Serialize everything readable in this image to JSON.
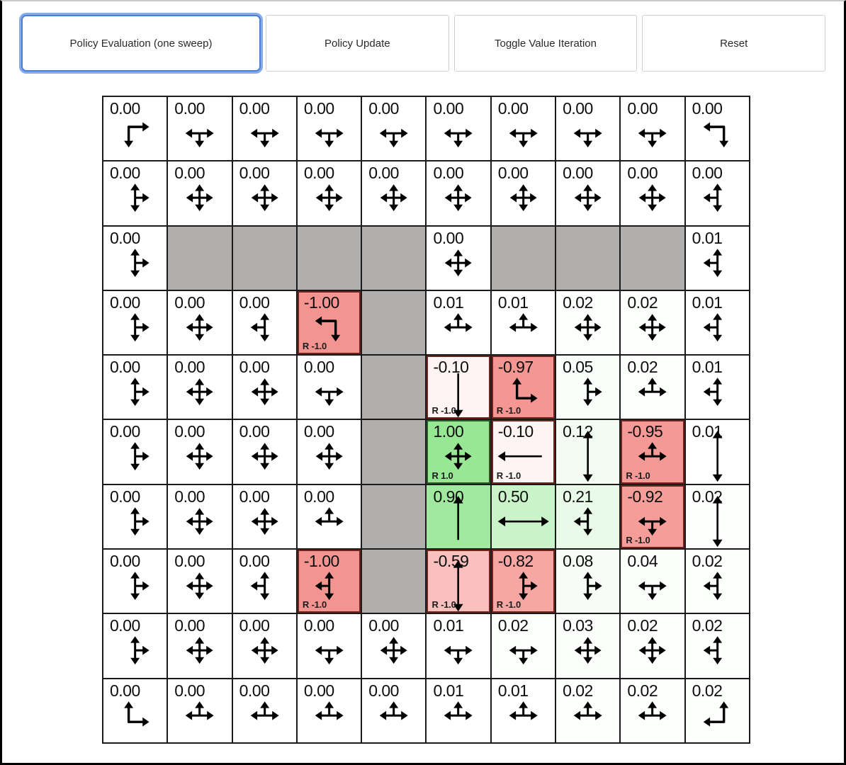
{
  "toolbar": {
    "buttons": [
      {
        "label": "Policy Evaluation (one sweep)",
        "focused": true
      },
      {
        "label": "Policy Update",
        "focused": false
      },
      {
        "label": "Toggle Value Iteration",
        "focused": false
      },
      {
        "label": "Reset",
        "focused": false
      }
    ]
  },
  "colors": {
    "positive_base": "#97e794",
    "negative_base": "#f49490",
    "wall": "#b0afad",
    "grid_line": "#1a1a1a",
    "positive_reward_border": "#235c23",
    "negative_reward_border": "#6e231c",
    "focus_border": "#4a7fd9",
    "focus_ring": "#87aaec"
  },
  "grid": {
    "rows": 10,
    "cols": 10,
    "cells": [
      [
        {
          "v": "0.00",
          "a": "elbow:r,d"
        },
        {
          "v": "0.00",
          "a": "star:l,r,d"
        },
        {
          "v": "0.00",
          "a": "star:l,r,d"
        },
        {
          "v": "0.00",
          "a": "star:l,r,d"
        },
        {
          "v": "0.00",
          "a": "star:l,r,d"
        },
        {
          "v": "0.00",
          "a": "star:l,r,d"
        },
        {
          "v": "0.00",
          "a": "star:l,r,d"
        },
        {
          "v": "0.00",
          "a": "star:l,r,d"
        },
        {
          "v": "0.00",
          "a": "star:l,r,d"
        },
        {
          "v": "0.00",
          "a": "elbow:l,d"
        }
      ],
      [
        {
          "v": "0.00",
          "a": "star:u,d,r"
        },
        {
          "v": "0.00",
          "a": "star:u,d,l,r"
        },
        {
          "v": "0.00",
          "a": "star:u,d,l,r"
        },
        {
          "v": "0.00",
          "a": "star:u,d,l,r"
        },
        {
          "v": "0.00",
          "a": "star:u,d,l,r"
        },
        {
          "v": "0.00",
          "a": "star:u,d,l,r"
        },
        {
          "v": "0.00",
          "a": "star:u,d,l,r"
        },
        {
          "v": "0.00",
          "a": "star:u,d,l,r"
        },
        {
          "v": "0.00",
          "a": "star:u,d,l,r"
        },
        {
          "v": "0.00",
          "a": "star:u,d,l"
        }
      ],
      [
        {
          "v": "0.00",
          "a": "star:u,d,r"
        },
        {
          "wall": true
        },
        {
          "wall": true
        },
        {
          "wall": true
        },
        {
          "wall": true
        },
        {
          "v": "0.00",
          "a": "star:u,d,l,r"
        },
        {
          "wall": true
        },
        {
          "wall": true
        },
        {
          "wall": true
        },
        {
          "v": "0.01",
          "a": "star:u,d,l"
        }
      ],
      [
        {
          "v": "0.00",
          "a": "star:u,d,r"
        },
        {
          "v": "0.00",
          "a": "star:u,d,l,r"
        },
        {
          "v": "0.00",
          "a": "star:u,d,l"
        },
        {
          "v": "-1.00",
          "a": "elbow:l,d",
          "r": "R -1.0"
        },
        {
          "wall": true
        },
        {
          "v": "0.01",
          "a": "star:u,l,r"
        },
        {
          "v": "0.01",
          "a": "star:u,l,r"
        },
        {
          "v": "0.02",
          "a": "star:u,d,l,r"
        },
        {
          "v": "0.02",
          "a": "star:u,d,l,r"
        },
        {
          "v": "0.01",
          "a": "star:u,d,l"
        }
      ],
      [
        {
          "v": "0.00",
          "a": "star:u,d,r"
        },
        {
          "v": "0.00",
          "a": "star:u,d,l,r"
        },
        {
          "v": "0.00",
          "a": "star:u,d,l,r"
        },
        {
          "v": "0.00",
          "a": "star:l,r,d"
        },
        {
          "wall": true
        },
        {
          "v": "-0.10",
          "a": "long:d",
          "r": "R -1.0"
        },
        {
          "v": "-0.97",
          "a": "elbow:u,r",
          "r": "R -1.0"
        },
        {
          "v": "0.05",
          "a": "star:u,d,r"
        },
        {
          "v": "0.02",
          "a": "star:u,l,r"
        },
        {
          "v": "0.01",
          "a": "star:u,d,l"
        }
      ],
      [
        {
          "v": "0.00",
          "a": "star:u,d,r"
        },
        {
          "v": "0.00",
          "a": "star:u,d,l,r"
        },
        {
          "v": "0.00",
          "a": "star:u,d,l,r"
        },
        {
          "v": "0.00",
          "a": "star:u,d,l,r"
        },
        {
          "wall": true
        },
        {
          "v": "1.00",
          "a": "star:u,d,l,r",
          "r": "R 1.0"
        },
        {
          "v": "-0.10",
          "a": "long:l",
          "r": "R -1.0"
        },
        {
          "v": "0.12",
          "a": "long:u,d"
        },
        {
          "v": "-0.95",
          "a": "star:u,l,r",
          "r": "R -1.0"
        },
        {
          "v": "0.01",
          "a": "long:u,d"
        }
      ],
      [
        {
          "v": "0.00",
          "a": "star:u,d,r"
        },
        {
          "v": "0.00",
          "a": "star:u,d,l,r"
        },
        {
          "v": "0.00",
          "a": "star:u,d,l,r"
        },
        {
          "v": "0.00",
          "a": "star:u,l,r"
        },
        {
          "wall": true
        },
        {
          "v": "0.90",
          "a": "long:u"
        },
        {
          "v": "0.50",
          "a": "long:l,r"
        },
        {
          "v": "0.21",
          "a": "star:u,d,l"
        },
        {
          "v": "-0.92",
          "a": "star:l,r,d",
          "r": "R -1.0"
        },
        {
          "v": "0.02",
          "a": "long:u,d"
        }
      ],
      [
        {
          "v": "0.00",
          "a": "star:u,d,r"
        },
        {
          "v": "0.00",
          "a": "star:u,d,l,r"
        },
        {
          "v": "0.00",
          "a": "star:u,d,l"
        },
        {
          "v": "-1.00",
          "a": "star:u,d,l",
          "r": "R -1.0"
        },
        {
          "wall": true
        },
        {
          "v": "-0.59",
          "a": "long:u,d",
          "r": "R -1.0"
        },
        {
          "v": "-0.82",
          "a": "star:u,d,r",
          "r": "R -1.0"
        },
        {
          "v": "0.08",
          "a": "star:u,d,r"
        },
        {
          "v": "0.04",
          "a": "star:l,r,d"
        },
        {
          "v": "0.02",
          "a": "star:u,d,l"
        }
      ],
      [
        {
          "v": "0.00",
          "a": "star:u,d,r"
        },
        {
          "v": "0.00",
          "a": "star:u,d,l,r"
        },
        {
          "v": "0.00",
          "a": "star:u,d,l,r"
        },
        {
          "v": "0.00",
          "a": "star:l,r,d"
        },
        {
          "v": "0.00",
          "a": "star:u,d,l,r"
        },
        {
          "v": "0.01",
          "a": "star:l,r,d"
        },
        {
          "v": "0.02",
          "a": "star:l,r,d"
        },
        {
          "v": "0.03",
          "a": "star:u,d,l,r"
        },
        {
          "v": "0.02",
          "a": "star:u,d,l,r"
        },
        {
          "v": "0.02",
          "a": "star:u,d,l"
        }
      ],
      [
        {
          "v": "0.00",
          "a": "elbow:u,r"
        },
        {
          "v": "0.00",
          "a": "star:u,l,r"
        },
        {
          "v": "0.00",
          "a": "star:u,l,r"
        },
        {
          "v": "0.00",
          "a": "star:u,l,r"
        },
        {
          "v": "0.00",
          "a": "star:u,l,r"
        },
        {
          "v": "0.01",
          "a": "star:u,l,r"
        },
        {
          "v": "0.01",
          "a": "star:u,l,r"
        },
        {
          "v": "0.02",
          "a": "star:u,l,r"
        },
        {
          "v": "0.02",
          "a": "star:u,l,r"
        },
        {
          "v": "0.02",
          "a": "elbow:u,l"
        }
      ]
    ]
  }
}
